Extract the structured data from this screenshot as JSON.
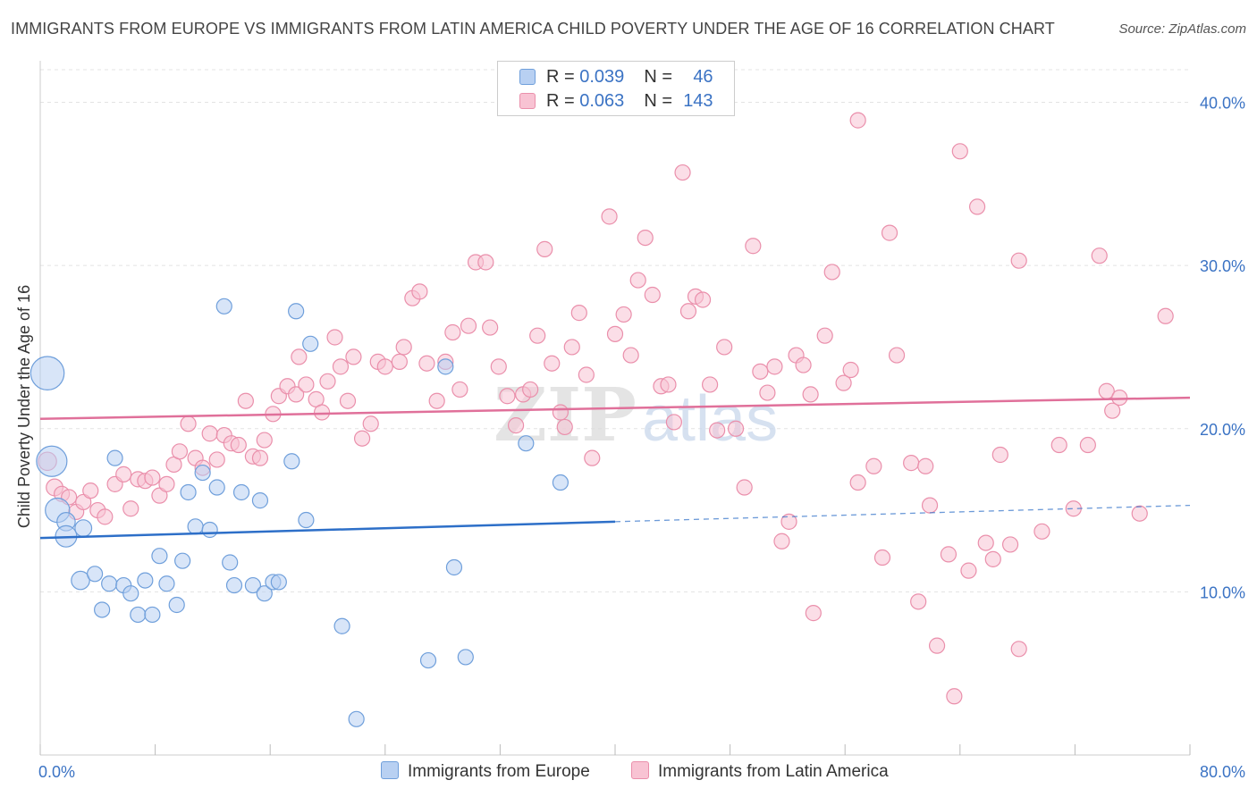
{
  "header": {
    "title": "IMMIGRANTS FROM EUROPE VS IMMIGRANTS FROM LATIN AMERICA CHILD POVERTY UNDER THE AGE OF 16 CORRELATION CHART",
    "source": "Source: ZipAtlas.com"
  },
  "watermark": {
    "zip": "ZIP",
    "atlas": "atlas"
  },
  "legend": {
    "rows": [
      {
        "r_label": "R = ",
        "r_value": "0.039",
        "n_label": "N = ",
        "n_value": "46"
      },
      {
        "r_label": "R = ",
        "r_value": "0.063",
        "n_label": "N = ",
        "n_value": "143"
      }
    ]
  },
  "colors": {
    "europe_fill": "#b8d0f2",
    "europe_stroke": "#6f9fdb",
    "europe_line": "#2d6fc8",
    "latam_fill": "#f8c3d3",
    "latam_stroke": "#ea8fab",
    "latam_line": "#e0709a",
    "tick_label": "#3b73c4",
    "grid": "#e3e3e3"
  },
  "chart_data": {
    "type": "scatter",
    "title": "IMMIGRANTS FROM EUROPE VS IMMIGRANTS FROM LATIN AMERICA CHILD POVERTY UNDER THE AGE OF 16 CORRELATION CHART",
    "xlabel": "",
    "ylabel": "Child Poverty Under the Age of 16",
    "xlim": [
      0,
      80
    ],
    "ylim": [
      0,
      42
    ],
    "x_tick_labels": [
      "0.0%",
      "80.0%"
    ],
    "y_ticks": [
      10,
      20,
      30,
      40
    ],
    "y_tick_labels": [
      "10.0%",
      "20.0%",
      "30.0%",
      "40.0%"
    ],
    "grid": true,
    "legend_position": "top-center",
    "series": [
      {
        "name": "Immigrants from Europe",
        "R": 0.039,
        "N": 46,
        "trend": {
          "x0": 0,
          "y0": 13.3,
          "x1": 40,
          "y1": 14.3,
          "dashed_to_x": 80,
          "dashed_to_y": 15.3
        },
        "points": [
          [
            0.5,
            23.4,
            2.2
          ],
          [
            0.8,
            18.0,
            2.0
          ],
          [
            1.2,
            15.0,
            1.6
          ],
          [
            1.8,
            14.3,
            1.2
          ],
          [
            1.8,
            13.4,
            1.4
          ],
          [
            3.0,
            13.9,
            1.1
          ],
          [
            2.8,
            10.7,
            1.2
          ],
          [
            3.8,
            11.1,
            1.0
          ],
          [
            4.3,
            8.9,
            1.0
          ],
          [
            4.8,
            10.5,
            1.0
          ],
          [
            5.2,
            18.2,
            1.0
          ],
          [
            5.8,
            10.4,
            1.0
          ],
          [
            6.3,
            9.9,
            1.0
          ],
          [
            6.8,
            8.6,
            1.0
          ],
          [
            7.3,
            10.7,
            1.0
          ],
          [
            7.8,
            8.6,
            1.0
          ],
          [
            8.3,
            12.2,
            1.0
          ],
          [
            8.8,
            10.5,
            1.0
          ],
          [
            9.5,
            9.2,
            1.0
          ],
          [
            9.9,
            11.9,
            1.0
          ],
          [
            10.3,
            16.1,
            1.0
          ],
          [
            10.8,
            14.0,
            1.0
          ],
          [
            11.3,
            17.3,
            1.0
          ],
          [
            11.8,
            13.8,
            1.0
          ],
          [
            12.3,
            16.4,
            1.0
          ],
          [
            12.8,
            27.5,
            1.0
          ],
          [
            13.2,
            11.8,
            1.0
          ],
          [
            13.5,
            10.4,
            1.0
          ],
          [
            14.0,
            16.1,
            1.0
          ],
          [
            14.8,
            10.4,
            1.0
          ],
          [
            15.3,
            15.6,
            1.0
          ],
          [
            15.6,
            9.9,
            1.0
          ],
          [
            16.2,
            10.6,
            1.0
          ],
          [
            16.6,
            10.6,
            1.0
          ],
          [
            17.5,
            18.0,
            1.0
          ],
          [
            17.8,
            27.2,
            1.0
          ],
          [
            18.5,
            14.4,
            1.0
          ],
          [
            18.8,
            25.2,
            1.0
          ],
          [
            21.0,
            7.9,
            1.0
          ],
          [
            22.0,
            2.2,
            1.0
          ],
          [
            27.0,
            5.8,
            1.0
          ],
          [
            28.2,
            23.8,
            1.0
          ],
          [
            28.8,
            11.5,
            1.0
          ],
          [
            29.6,
            6.0,
            1.0
          ],
          [
            33.8,
            19.1,
            1.0
          ],
          [
            36.2,
            16.7,
            1.0
          ]
        ]
      },
      {
        "name": "Immigrants from Latin America",
        "R": 0.063,
        "N": 143,
        "trend": {
          "x0": 0,
          "y0": 20.6,
          "x1": 80,
          "y1": 21.9
        },
        "points": [
          [
            0.5,
            18.0,
            1.2
          ],
          [
            1.0,
            16.4,
            1.1
          ],
          [
            1.5,
            16.0,
            1.0
          ],
          [
            2.0,
            15.8,
            1.0
          ],
          [
            2.5,
            14.9,
            1.0
          ],
          [
            3.0,
            15.5,
            1.0
          ],
          [
            3.5,
            16.2,
            1.0
          ],
          [
            4.0,
            15.0,
            1.0
          ],
          [
            4.5,
            14.6,
            1.0
          ],
          [
            5.2,
            16.6,
            1.0
          ],
          [
            5.8,
            17.2,
            1.0
          ],
          [
            6.3,
            15.1,
            1.0
          ],
          [
            6.8,
            16.9,
            1.0
          ],
          [
            7.3,
            16.8,
            1.0
          ],
          [
            7.8,
            17.0,
            1.0
          ],
          [
            8.3,
            15.9,
            1.0
          ],
          [
            8.8,
            16.6,
            1.0
          ],
          [
            9.3,
            17.8,
            1.0
          ],
          [
            9.7,
            18.6,
            1.0
          ],
          [
            10.3,
            20.3,
            1.0
          ],
          [
            10.8,
            18.2,
            1.0
          ],
          [
            11.3,
            17.6,
            1.0
          ],
          [
            11.8,
            19.7,
            1.0
          ],
          [
            12.3,
            18.1,
            1.0
          ],
          [
            12.8,
            19.6,
            1.0
          ],
          [
            13.3,
            19.1,
            1.0
          ],
          [
            13.8,
            19.0,
            1.0
          ],
          [
            14.3,
            21.7,
            1.0
          ],
          [
            14.8,
            18.3,
            1.0
          ],
          [
            15.3,
            18.2,
            1.0
          ],
          [
            15.6,
            19.3,
            1.0
          ],
          [
            16.2,
            20.9,
            1.0
          ],
          [
            16.6,
            22.0,
            1.0
          ],
          [
            17.2,
            22.6,
            1.0
          ],
          [
            17.8,
            22.1,
            1.0
          ],
          [
            18.0,
            24.4,
            1.0
          ],
          [
            18.5,
            22.7,
            1.0
          ],
          [
            19.2,
            21.8,
            1.0
          ],
          [
            19.6,
            21.0,
            1.0
          ],
          [
            20.0,
            22.9,
            1.0
          ],
          [
            20.5,
            25.6,
            1.0
          ],
          [
            20.9,
            23.8,
            1.0
          ],
          [
            21.4,
            21.7,
            1.0
          ],
          [
            21.8,
            24.4,
            1.0
          ],
          [
            22.4,
            19.4,
            1.0
          ],
          [
            23.0,
            20.3,
            1.0
          ],
          [
            23.5,
            24.1,
            1.0
          ],
          [
            24.0,
            23.8,
            1.0
          ],
          [
            25.0,
            24.1,
            1.0
          ],
          [
            25.3,
            25.0,
            1.0
          ],
          [
            25.9,
            28.0,
            1.0
          ],
          [
            26.4,
            28.4,
            1.0
          ],
          [
            26.9,
            24.0,
            1.0
          ],
          [
            27.6,
            21.7,
            1.0
          ],
          [
            28.2,
            24.1,
            1.0
          ],
          [
            28.7,
            25.9,
            1.0
          ],
          [
            29.2,
            22.4,
            1.0
          ],
          [
            29.8,
            26.3,
            1.0
          ],
          [
            30.3,
            30.2,
            1.0
          ],
          [
            31.0,
            30.2,
            1.0
          ],
          [
            31.3,
            26.2,
            1.0
          ],
          [
            31.9,
            23.8,
            1.0
          ],
          [
            32.5,
            22.0,
            1.0
          ],
          [
            33.1,
            20.2,
            1.0
          ],
          [
            33.6,
            22.1,
            1.0
          ],
          [
            34.1,
            22.4,
            1.0
          ],
          [
            34.6,
            25.7,
            1.0
          ],
          [
            35.1,
            31.0,
            1.0
          ],
          [
            35.6,
            24.0,
            1.0
          ],
          [
            36.2,
            21.0,
            1.0
          ],
          [
            36.5,
            20.1,
            1.0
          ],
          [
            37.0,
            25.0,
            1.0
          ],
          [
            37.5,
            27.1,
            1.0
          ],
          [
            38.0,
            23.3,
            1.0
          ],
          [
            38.4,
            18.2,
            1.0
          ],
          [
            39.6,
            33.0,
            1.0
          ],
          [
            40.0,
            25.8,
            1.0
          ],
          [
            40.6,
            27.0,
            1.0
          ],
          [
            41.1,
            24.5,
            1.0
          ],
          [
            41.6,
            29.1,
            1.0
          ],
          [
            42.1,
            31.7,
            1.0
          ],
          [
            42.6,
            28.2,
            1.0
          ],
          [
            43.2,
            22.6,
            1.0
          ],
          [
            43.7,
            22.7,
            1.0
          ],
          [
            44.1,
            20.4,
            1.0
          ],
          [
            44.7,
            35.7,
            1.0
          ],
          [
            45.1,
            27.2,
            1.0
          ],
          [
            45.6,
            28.1,
            1.0
          ],
          [
            46.1,
            27.9,
            1.0
          ],
          [
            46.6,
            22.7,
            1.0
          ],
          [
            47.1,
            19.9,
            1.0
          ],
          [
            47.6,
            25.0,
            1.0
          ],
          [
            48.4,
            20.0,
            1.0
          ],
          [
            49.0,
            16.4,
            1.0
          ],
          [
            49.6,
            31.2,
            1.0
          ],
          [
            50.1,
            23.5,
            1.0
          ],
          [
            50.6,
            22.2,
            1.0
          ],
          [
            51.1,
            23.8,
            1.0
          ],
          [
            51.6,
            13.1,
            1.0
          ],
          [
            52.1,
            14.3,
            1.0
          ],
          [
            52.6,
            24.5,
            1.0
          ],
          [
            53.1,
            23.9,
            1.0
          ],
          [
            53.6,
            22.1,
            1.0
          ],
          [
            53.8,
            8.7,
            1.0
          ],
          [
            54.6,
            25.7,
            1.0
          ],
          [
            55.1,
            29.6,
            1.0
          ],
          [
            55.9,
            22.8,
            1.0
          ],
          [
            56.4,
            23.6,
            1.0
          ],
          [
            56.9,
            16.7,
            1.0
          ],
          [
            56.9,
            38.9,
            1.0
          ],
          [
            58.0,
            17.7,
            1.0
          ],
          [
            58.6,
            12.1,
            1.0
          ],
          [
            59.1,
            32.0,
            1.0
          ],
          [
            59.6,
            24.5,
            1.0
          ],
          [
            60.6,
            17.9,
            1.0
          ],
          [
            61.1,
            9.4,
            1.0
          ],
          [
            61.6,
            17.7,
            1.0
          ],
          [
            61.9,
            15.3,
            1.0
          ],
          [
            62.4,
            6.7,
            1.0
          ],
          [
            63.2,
            12.3,
            1.0
          ],
          [
            63.6,
            3.6,
            1.0
          ],
          [
            64.0,
            37.0,
            1.0
          ],
          [
            64.6,
            11.3,
            1.0
          ],
          [
            65.2,
            33.6,
            1.0
          ],
          [
            65.8,
            13.0,
            1.0
          ],
          [
            66.3,
            12.0,
            1.0
          ],
          [
            66.8,
            18.4,
            1.0
          ],
          [
            67.5,
            12.9,
            1.0
          ],
          [
            68.1,
            30.3,
            1.0
          ],
          [
            68.1,
            6.5,
            1.0
          ],
          [
            69.7,
            13.7,
            1.0
          ],
          [
            70.9,
            19.0,
            1.0
          ],
          [
            71.9,
            15.1,
            1.0
          ],
          [
            72.9,
            19.0,
            1.0
          ],
          [
            73.7,
            30.6,
            1.0
          ],
          [
            74.2,
            22.3,
            1.0
          ],
          [
            74.6,
            21.1,
            1.0
          ],
          [
            75.1,
            21.9,
            1.0
          ],
          [
            76.5,
            14.8,
            1.0
          ],
          [
            78.3,
            26.9,
            1.0
          ]
        ]
      }
    ]
  },
  "bottom_legend": {
    "europe": "Immigrants from Europe",
    "latam": "Immigrants from Latin America"
  }
}
